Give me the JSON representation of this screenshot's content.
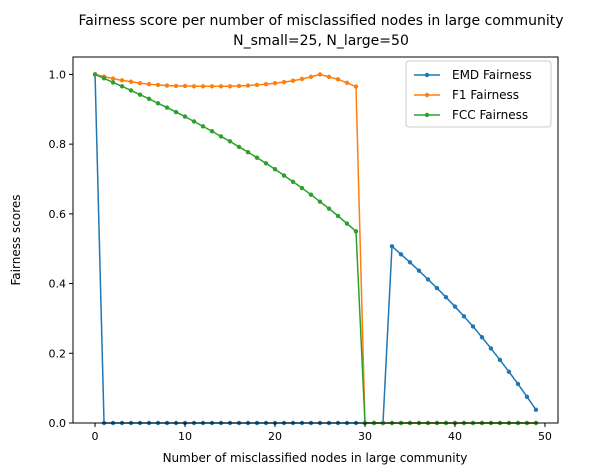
{
  "chart_data": {
    "type": "line",
    "title": "Fairness score per number of misclassified nodes in large community",
    "subtitle": "N_small=25, N_large=50",
    "xlabel": "Number of misclassified nodes in large community",
    "ylabel": "Fairness scores",
    "xlim": [
      -2.45,
      51.45
    ],
    "ylim": [
      0,
      1.05
    ],
    "x_ticks": [
      0,
      10,
      20,
      30,
      40,
      50
    ],
    "y_ticks": [
      0.0,
      0.2,
      0.4,
      0.6,
      0.8,
      1.0
    ],
    "grid": false,
    "legend_position": "top-right",
    "x": [
      0,
      1,
      2,
      3,
      4,
      5,
      6,
      7,
      8,
      9,
      10,
      11,
      12,
      13,
      14,
      15,
      16,
      17,
      18,
      19,
      20,
      21,
      22,
      23,
      24,
      25,
      26,
      27,
      28,
      29,
      30,
      31,
      32,
      33,
      34,
      35,
      36,
      37,
      38,
      39,
      40,
      41,
      42,
      43,
      44,
      45,
      46,
      47,
      48,
      49
    ],
    "series": [
      {
        "name": "EMD Fairness",
        "color": "#1f77b4",
        "values": [
          1.0,
          0,
          0,
          0,
          0,
          0,
          0,
          0,
          0,
          0,
          0,
          0,
          0,
          0,
          0,
          0,
          0,
          0,
          0,
          0,
          0,
          0,
          0,
          0,
          0,
          0,
          0,
          0,
          0,
          0,
          0,
          0,
          0,
          0.507,
          0.484,
          0.461,
          0.437,
          0.412,
          0.387,
          0.361,
          0.334,
          0.306,
          0.277,
          0.246,
          0.214,
          0.181,
          0.147,
          0.112,
          0.075,
          0.038
        ]
      },
      {
        "name": "F1 Fairness",
        "color": "#ff7f0e",
        "values": [
          1.0,
          0.994,
          0.988,
          0.983,
          0.979,
          0.975,
          0.972,
          0.97,
          0.968,
          0.967,
          0.967,
          0.966,
          0.966,
          0.966,
          0.966,
          0.966,
          0.967,
          0.968,
          0.97,
          0.972,
          0.975,
          0.978,
          0.982,
          0.987,
          0.993,
          1.0,
          0.993,
          0.986,
          0.976,
          0.965,
          0,
          0,
          0,
          0,
          0,
          0,
          0,
          0,
          0,
          0,
          0,
          0,
          0,
          0,
          0,
          0,
          0,
          0,
          0,
          0
        ]
      },
      {
        "name": "FCC Fairness",
        "color": "#2ca02c",
        "values": [
          1.0,
          0.989,
          0.977,
          0.966,
          0.954,
          0.942,
          0.93,
          0.917,
          0.905,
          0.892,
          0.879,
          0.865,
          0.851,
          0.837,
          0.822,
          0.808,
          0.792,
          0.777,
          0.761,
          0.745,
          0.728,
          0.71,
          0.692,
          0.674,
          0.655,
          0.635,
          0.615,
          0.594,
          0.572,
          0.55,
          0,
          0,
          0,
          0,
          0,
          0,
          0,
          0,
          0,
          0,
          0,
          0,
          0,
          0,
          0,
          0,
          0,
          0,
          0,
          0
        ]
      }
    ]
  }
}
